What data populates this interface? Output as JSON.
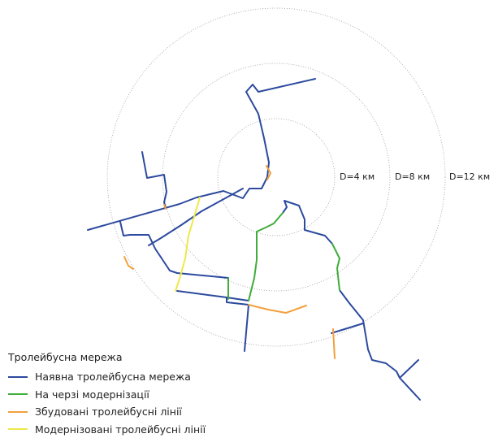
{
  "rings": [
    {
      "label": "D=4 км"
    },
    {
      "label": "D=8 км"
    },
    {
      "label": "D=12 км"
    }
  ],
  "legend": {
    "title": "Тролейбусна мережа",
    "items": [
      {
        "key": "existing",
        "label": "Наявна тролейбусна мережа",
        "color": "#2c4a9e"
      },
      {
        "key": "queued",
        "label": "На черзі модернізації",
        "color": "#3fad3a"
      },
      {
        "key": "built",
        "label": "Збудовані тролейбусні лінії",
        "color": "#f2a03c"
      },
      {
        "key": "modernized",
        "label": "Модернізовані тролейбусні лінії",
        "color": "#eee84a"
      }
    ]
  },
  "colors": {
    "ring": "#9a9a9a",
    "background": "#ffffff"
  }
}
